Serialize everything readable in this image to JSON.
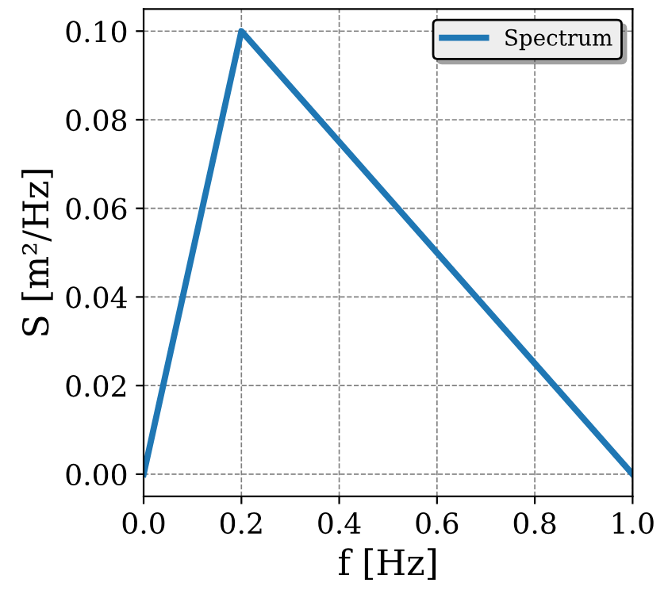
{
  "chart_data": {
    "type": "line",
    "xlabel": "f [Hz]",
    "ylabel": "S [m²/Hz]",
    "x": [
      0.0,
      0.2,
      1.0
    ],
    "series": [
      {
        "name": "Spectrum",
        "color": "#1f77b4",
        "values": [
          0.0,
          0.1,
          0.0
        ]
      }
    ],
    "xlim": [
      0.0,
      1.0
    ],
    "xticks": [
      {
        "value": 0.0,
        "label": "0.0"
      },
      {
        "value": 0.2,
        "label": "0.2"
      },
      {
        "value": 0.4,
        "label": "0.4"
      },
      {
        "value": 0.6,
        "label": "0.6"
      },
      {
        "value": 0.8,
        "label": "0.8"
      },
      {
        "value": 1.0,
        "label": "1.0"
      }
    ],
    "ylim": [
      -0.005,
      0.105
    ],
    "yticks": [
      {
        "value": 0.0,
        "label": "0.00"
      },
      {
        "value": 0.02,
        "label": "0.02"
      },
      {
        "value": 0.04,
        "label": "0.04"
      },
      {
        "value": 0.06,
        "label": "0.06"
      },
      {
        "value": 0.08,
        "label": "0.08"
      },
      {
        "value": 0.1,
        "label": "0.10"
      }
    ],
    "grid": true,
    "legend": "top right",
    "line_style": "solid"
  }
}
